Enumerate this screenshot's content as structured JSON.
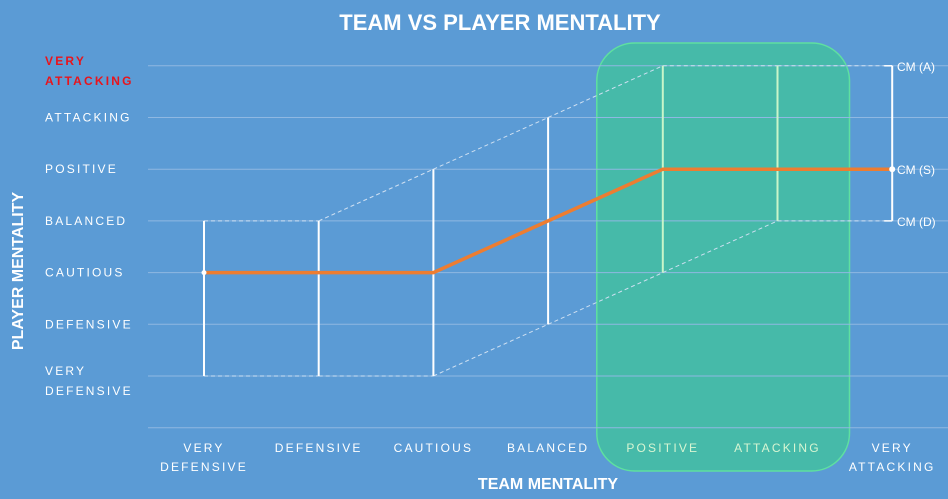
{
  "colors": {
    "background": "#5b9bd5",
    "gridline": "#8fb8e2",
    "range_line": "#ffffff",
    "range_line_highlight": "#c9f5c9",
    "dashed": "#cfe0f2",
    "trend_line": "#ed7d31",
    "highlight_fill": "#3fc49a",
    "highlight_stroke": "#5fe0a0",
    "label_text": "#ffffff",
    "highlight_text": "#d7f5d2",
    "very_attacking_y_label": "#e8141c"
  },
  "chart_data": {
    "type": "line",
    "title": "TEAM VS PLAYER MENTALITY",
    "xlabel": "TEAM MENTALITY",
    "ylabel": "PLAYER MENTALITY",
    "x_categories": [
      [
        "VERY",
        "DEFENSIVE"
      ],
      [
        "DEFENSIVE"
      ],
      [
        "CAUTIOUS"
      ],
      [
        "BALANCED"
      ],
      [
        "POSITIVE"
      ],
      [
        "ATTACKING"
      ],
      [
        "VERY",
        "ATTACKING"
      ]
    ],
    "y_levels": [
      [
        "VERY",
        "DEFENSIVE"
      ],
      [
        "DEFENSIVE"
      ],
      [
        "CAUTIOUS"
      ],
      [
        "BALANCED"
      ],
      [
        "POSITIVE"
      ],
      [
        "ATTACKING"
      ],
      [
        "VERY",
        "ATTACKING"
      ]
    ],
    "y_highlight_level_index": 6,
    "highlighted_x_indices": [
      4,
      5
    ],
    "ranges": [
      {
        "x": 0,
        "low": 0,
        "high": 3
      },
      {
        "x": 1,
        "low": 0,
        "high": 3
      },
      {
        "x": 2,
        "low": 0,
        "high": 4
      },
      {
        "x": 3,
        "low": 1,
        "high": 5
      },
      {
        "x": 4,
        "low": 2,
        "high": 6
      },
      {
        "x": 5,
        "low": 3,
        "high": 6
      },
      {
        "x": 6,
        "low": 3,
        "high": 6
      }
    ],
    "series": [
      {
        "name": "CM (S)",
        "values": [
          2,
          2,
          2,
          3,
          4,
          4,
          4
        ]
      }
    ],
    "range_labels": [
      {
        "text": "CM (A)",
        "level": 6
      },
      {
        "text": "CM (S)",
        "level": 4
      },
      {
        "text": "CM (D)",
        "level": 3
      }
    ]
  }
}
